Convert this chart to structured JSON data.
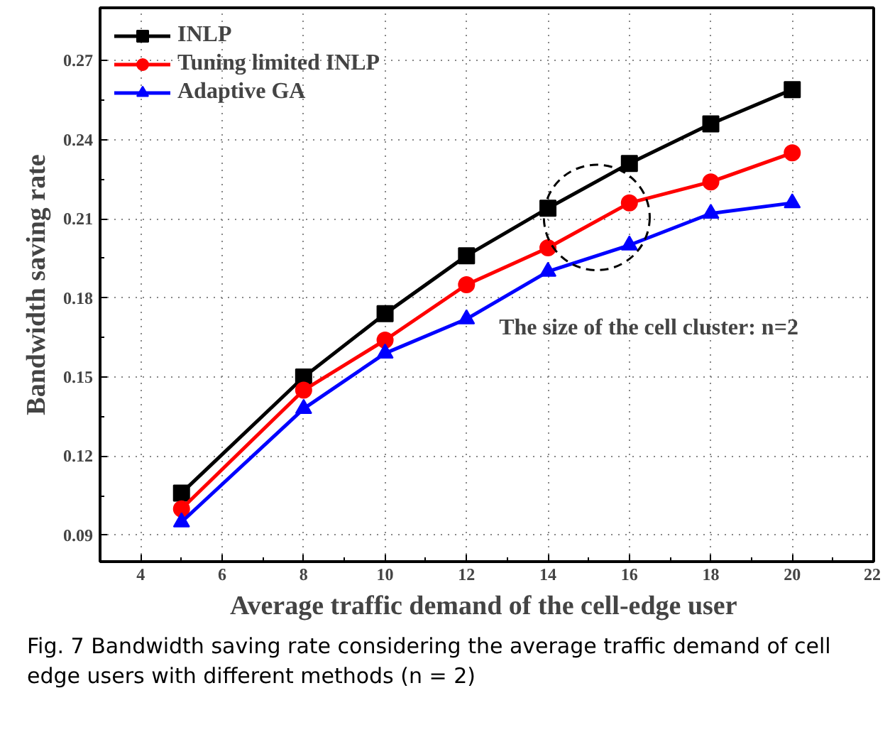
{
  "chart_data": {
    "type": "line",
    "xlabel": "Average traffic demand  of the cell-edge user",
    "ylabel": "Bandwidth saving rate",
    "x": [
      5,
      8,
      10,
      12,
      14,
      16,
      18,
      20
    ],
    "series": [
      {
        "name": "INLP",
        "color": "#000000",
        "marker": "square",
        "values": [
          0.106,
          0.15,
          0.174,
          0.196,
          0.214,
          0.231,
          0.246,
          0.259
        ]
      },
      {
        "name": "Tuning limited INLP",
        "color": "#ff0000",
        "marker": "circle",
        "values": [
          0.1,
          0.145,
          0.164,
          0.185,
          0.199,
          0.216,
          0.224,
          0.235
        ]
      },
      {
        "name": "Adaptive GA",
        "color": "#0000ff",
        "marker": "triangle",
        "values": [
          0.095,
          0.138,
          0.159,
          0.172,
          0.19,
          0.2,
          0.212,
          0.216
        ]
      }
    ],
    "xlim": [
      3,
      22
    ],
    "xticks": [
      4,
      6,
      8,
      10,
      12,
      14,
      16,
      18,
      20,
      22
    ],
    "ylim": [
      0.08,
      0.29
    ],
    "yticks": [
      0.09,
      0.12,
      0.15,
      0.18,
      0.21,
      0.24,
      0.27
    ],
    "grid": true,
    "legend": "top left",
    "line_style": "solid",
    "annotations": [
      "The size of the cell cluster: n=2",
      "Fig. 7 Bandwidth saving rate considering the average traffic demand of cell edge users with different methods (n = 2)"
    ]
  }
}
